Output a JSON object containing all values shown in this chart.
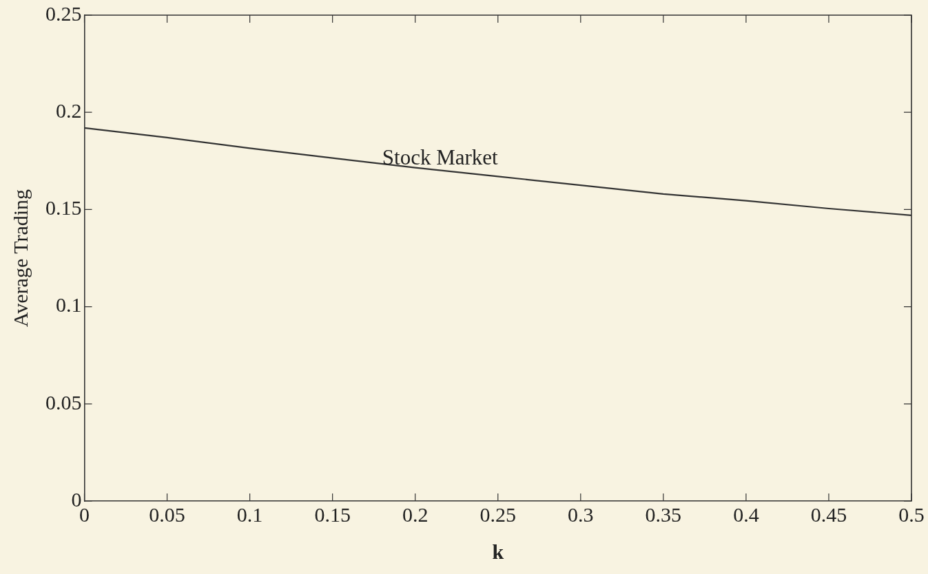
{
  "chart_data": {
    "type": "line",
    "xlabel": "k",
    "ylabel": "Average Trading",
    "x": [
      0,
      0.05,
      0.1,
      0.15,
      0.2,
      0.25,
      0.3,
      0.35,
      0.4,
      0.45,
      0.5
    ],
    "series": [
      {
        "name": "Stock Market",
        "color": "#333333",
        "values": [
          0.192,
          0.187,
          0.1815,
          0.1765,
          0.1715,
          0.167,
          0.1625,
          0.158,
          0.1545,
          0.1505,
          0.147
        ]
      }
    ],
    "xlim": [
      0,
      0.5
    ],
    "ylim": [
      0,
      0.25
    ],
    "xticks": [
      0,
      0.05,
      0.1,
      0.15,
      0.2,
      0.25,
      0.3,
      0.35,
      0.4,
      0.45,
      0.5
    ],
    "yticks": [
      0,
      0.05,
      0.1,
      0.15,
      0.2,
      0.25
    ],
    "marker": "none",
    "line_style": "solid"
  }
}
